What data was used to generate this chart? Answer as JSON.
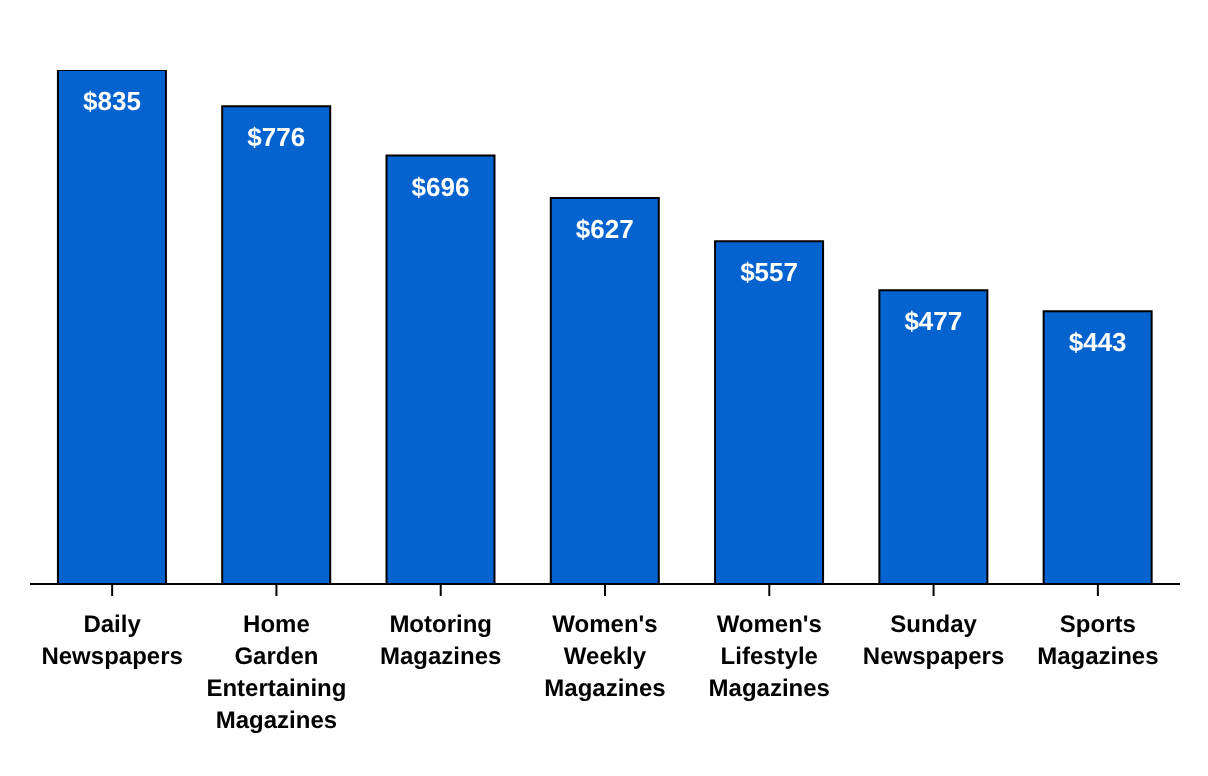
{
  "chart_data": {
    "type": "bar",
    "categories": [
      "Daily Newspapers",
      "Home Garden Entertaining Magazines",
      "Motoring Magazines",
      "Women's Weekly Magazines",
      "Women's Lifestyle Magazines",
      "Sunday Newspapers",
      "Sports Magazines"
    ],
    "values": [
      835,
      776,
      696,
      627,
      557,
      477,
      443
    ],
    "value_labels": [
      "$835",
      "$776",
      "$696",
      "$627",
      "$557",
      "$477",
      "$443"
    ],
    "color": "#0563cf",
    "ylim": [
      0,
      835
    ],
    "grid": false,
    "legend": false
  }
}
